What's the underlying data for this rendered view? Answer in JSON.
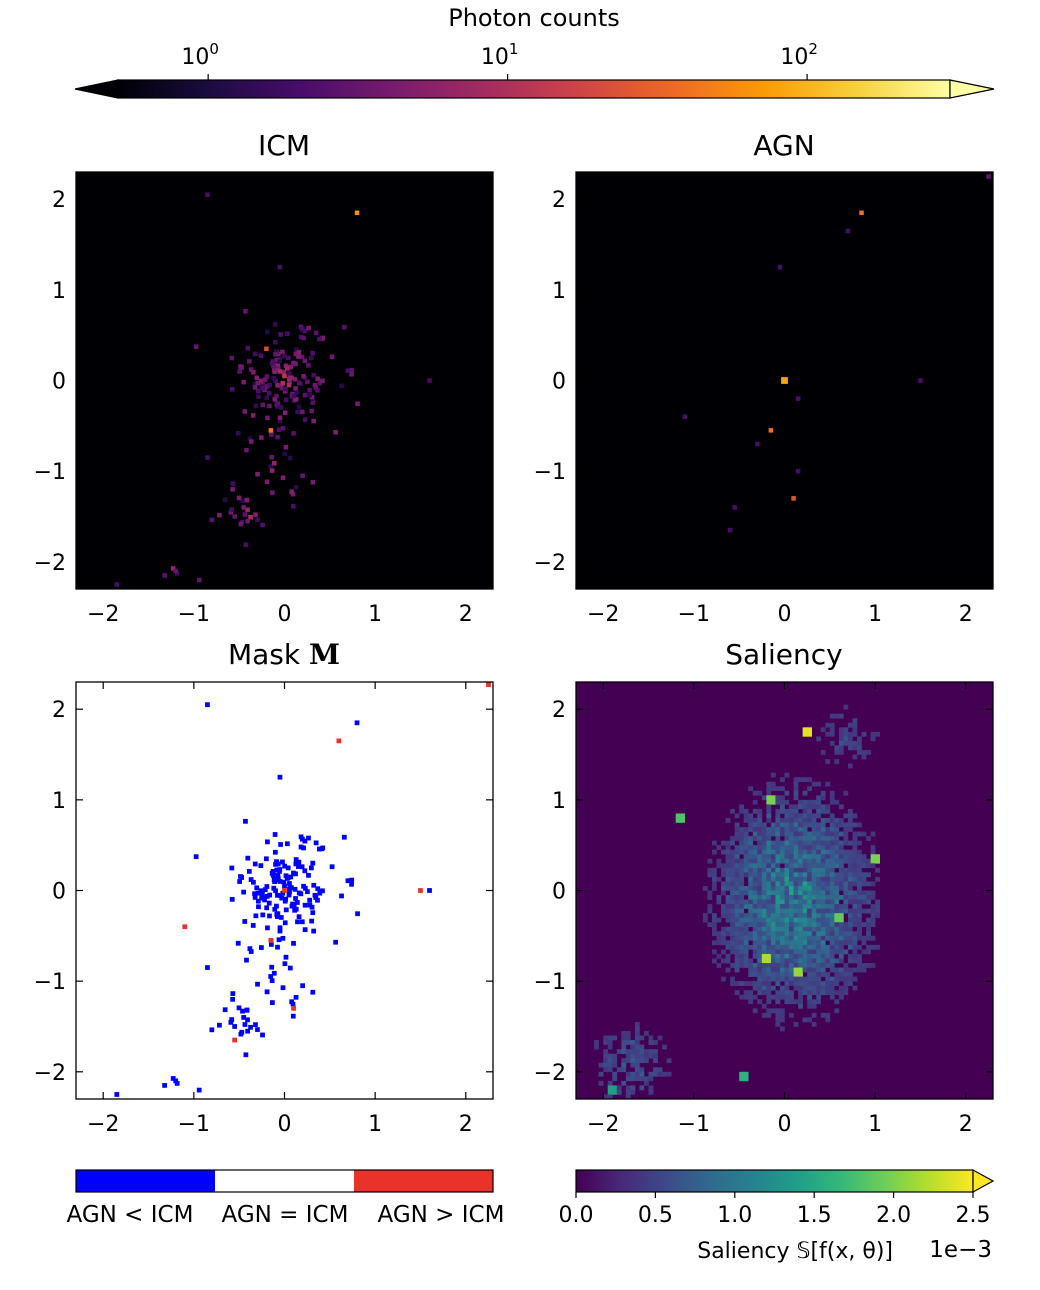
{
  "colors": {
    "agn_lt_icm": "#0000ff",
    "agn_eq_icm": "#ffffff",
    "agn_gt_icm": "#e8322a",
    "inferno": [
      "#000004",
      "#1b0c41",
      "#4a0c6b",
      "#781c6d",
      "#a52c60",
      "#cf4446",
      "#ed6925",
      "#fb9b06",
      "#f7d13d",
      "#fcffa4"
    ],
    "viridis": [
      "#440154",
      "#482878",
      "#3e4989",
      "#31688e",
      "#26828e",
      "#1f9e89",
      "#35b779",
      "#6ece58",
      "#b5de2b",
      "#fde725"
    ]
  },
  "colorbar_top": {
    "label": "Photon counts",
    "scale": "log",
    "range": [
      0.5,
      300
    ],
    "extend": "both",
    "ticks": [
      {
        "value": 1,
        "label": "10",
        "exp": "0"
      },
      {
        "value": 10,
        "label": "10",
        "exp": "1"
      },
      {
        "value": 100,
        "label": "10",
        "exp": "2"
      }
    ]
  },
  "colorbar_mask": {
    "labels": [
      "AGN < ICM",
      "AGN = ICM",
      "AGN > ICM"
    ]
  },
  "colorbar_saliency": {
    "label": "Saliency 𝕊[f(x, θ)]",
    "offset_text": "1e−3",
    "range": [
      0,
      2.5
    ],
    "extend": "max",
    "ticks": [
      "0.0",
      "0.5",
      "1.0",
      "1.5",
      "2.0",
      "2.5"
    ]
  },
  "chart_data": [
    {
      "type": "heatmap",
      "title": "ICM",
      "xlim": [
        -2.3,
        2.3
      ],
      "ylim": [
        -2.3,
        2.3
      ],
      "xticks": [
        "−2",
        "−1",
        "0",
        "1",
        "2"
      ],
      "yticks": [
        "−2",
        "−1",
        "0",
        "1",
        "2"
      ],
      "colormap": "inferno",
      "scale": "log",
      "points": [
        {
          "x": 0.8,
          "y": 1.85,
          "value": 60
        },
        {
          "x": -0.85,
          "y": 2.05,
          "value": 2
        },
        {
          "x": -0.05,
          "y": 1.25,
          "value": 2
        },
        {
          "x": -0.2,
          "y": 0.35,
          "value": 20
        },
        {
          "x": -0.05,
          "y": 0.1,
          "value": 8
        },
        {
          "x": 0.0,
          "y": 0.05,
          "value": 12
        },
        {
          "x": 0.05,
          "y": -0.05,
          "value": 10
        },
        {
          "x": -0.15,
          "y": -0.55,
          "value": 40
        },
        {
          "x": 1.6,
          "y": 0.0,
          "value": 2
        },
        {
          "x": -0.85,
          "y": -0.85,
          "value": 2
        },
        {
          "x": 0.2,
          "y": -1.05,
          "value": 3
        },
        {
          "x": -0.45,
          "y": -1.4,
          "value": 4
        },
        {
          "x": -0.55,
          "y": -1.5,
          "value": 3
        },
        {
          "x": -1.2,
          "y": -2.1,
          "value": 3
        },
        {
          "x": -1.85,
          "y": -2.25,
          "value": 2
        }
      ]
    },
    {
      "type": "heatmap",
      "title": "AGN",
      "xlim": [
        -2.3,
        2.3
      ],
      "ylim": [
        -2.3,
        2.3
      ],
      "xticks": [
        "−2",
        "−1",
        "0",
        "1",
        "2"
      ],
      "yticks": [
        "−2",
        "−1",
        "0",
        "1",
        "2"
      ],
      "colormap": "inferno",
      "scale": "log",
      "points": [
        {
          "x": 0.0,
          "y": 0.0,
          "value": 80
        },
        {
          "x": -0.15,
          "y": -0.55,
          "value": 40
        },
        {
          "x": 0.85,
          "y": 1.85,
          "value": 40
        },
        {
          "x": 0.7,
          "y": 1.65,
          "value": 2
        },
        {
          "x": -0.05,
          "y": 1.25,
          "value": 2
        },
        {
          "x": 0.1,
          "y": -1.3,
          "value": 25
        },
        {
          "x": 2.25,
          "y": 2.25,
          "value": 3
        },
        {
          "x": 1.5,
          "y": 0.0,
          "value": 2
        },
        {
          "x": -1.1,
          "y": -0.4,
          "value": 2
        },
        {
          "x": 0.15,
          "y": -0.2,
          "value": 2
        },
        {
          "x": -0.3,
          "y": -0.7,
          "value": 2
        },
        {
          "x": 0.15,
          "y": -1.0,
          "value": 2
        },
        {
          "x": -0.55,
          "y": -1.4,
          "value": 2
        },
        {
          "x": -0.6,
          "y": -1.65,
          "value": 2
        }
      ]
    },
    {
      "type": "heatmap",
      "title": "Mask",
      "title_symbol": "M",
      "xlim": [
        -2.3,
        2.3
      ],
      "ylim": [
        -2.3,
        2.3
      ],
      "xticks": [
        "−2",
        "−1",
        "0",
        "1",
        "2"
      ],
      "yticks": [
        "−2",
        "−1",
        "0",
        "1",
        "2"
      ],
      "categories": [
        "AGN < ICM",
        "AGN = ICM",
        "AGN > ICM"
      ],
      "red_points": [
        {
          "x": 0.0,
          "y": 0.0
        },
        {
          "x": -1.1,
          "y": -0.4
        },
        {
          "x": 0.6,
          "y": 1.65
        },
        {
          "x": 2.25,
          "y": 2.27
        },
        {
          "x": 1.5,
          "y": 0.0
        },
        {
          "x": 0.1,
          "y": -1.3
        },
        {
          "x": -0.55,
          "y": -1.65
        },
        {
          "x": -0.15,
          "y": -0.55
        }
      ]
    },
    {
      "type": "heatmap",
      "title": "Saliency",
      "xlim": [
        -2.3,
        2.3
      ],
      "ylim": [
        -2.3,
        2.3
      ],
      "xticks": [
        "−2",
        "−1",
        "0",
        "1",
        "2"
      ],
      "yticks": [
        "−2",
        "−1",
        "0",
        "1",
        "2"
      ],
      "colormap": "viridis",
      "value_range": [
        0,
        2.5
      ],
      "value_unit_multiplier": "1e-3",
      "hotspots": [
        {
          "x": 0.25,
          "y": 1.75,
          "value": 2.4
        },
        {
          "x": -0.15,
          "y": 1.0,
          "value": 2.0
        },
        {
          "x": -1.15,
          "y": 0.8,
          "value": 1.8
        },
        {
          "x": 1.0,
          "y": 0.35,
          "value": 2.0
        },
        {
          "x": -0.2,
          "y": -0.75,
          "value": 2.2
        },
        {
          "x": 0.15,
          "y": -0.9,
          "value": 2.1
        },
        {
          "x": 0.6,
          "y": -0.3,
          "value": 1.9
        },
        {
          "x": -0.45,
          "y": -2.05,
          "value": 1.6
        },
        {
          "x": -1.9,
          "y": -2.2,
          "value": 1.4
        }
      ]
    }
  ]
}
